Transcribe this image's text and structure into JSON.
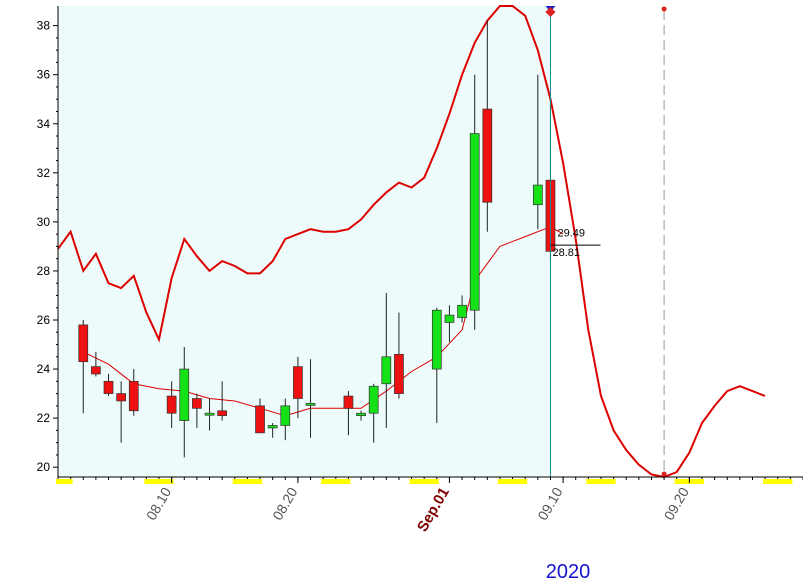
{
  "chart_data": {
    "type": "candlestick",
    "year_label": "2020",
    "y_ticks": [
      "20",
      "22",
      "24",
      "26",
      "28",
      "30",
      "32",
      "34",
      "36",
      "38"
    ],
    "x_ticks": [
      {
        "label": "08.10",
        "date": "2020-08-10"
      },
      {
        "label": "08.20",
        "date": "2020-08-20"
      },
      {
        "label": "Sep.01",
        "date": "2020-09-01",
        "emphasis": true
      },
      {
        "label": "09.10",
        "date": "2020-09-10"
      },
      {
        "label": "09.20",
        "date": "2020-09-20"
      }
    ],
    "ylim": [
      19.6,
      38.8
    ],
    "xlim": [
      "2020-08-01",
      "2020-09-29"
    ],
    "last_close_label": "28.81",
    "moving_avg_label": "29.49",
    "colors": {
      "up": "#16e016",
      "down": "#ee1111",
      "line": "#dd0000",
      "shade": "#eefbfb",
      "cursor": "#0f8f8f",
      "year_label": "#1515cc",
      "sep_label": "#800000",
      "weekend": "#ffff00"
    },
    "candles": [
      {
        "date": "2020-08-03",
        "open": 25.8,
        "high": 26.0,
        "low": 22.2,
        "close": 24.3
      },
      {
        "date": "2020-08-04",
        "open": 24.1,
        "high": 24.7,
        "low": 23.7,
        "close": 23.8
      },
      {
        "date": "2020-08-05",
        "open": 23.5,
        "high": 23.8,
        "low": 22.9,
        "close": 23.0
      },
      {
        "date": "2020-08-06",
        "open": 23.0,
        "high": 23.5,
        "low": 21.0,
        "close": 22.7
      },
      {
        "date": "2020-08-07",
        "open": 23.5,
        "high": 24.0,
        "low": 22.1,
        "close": 22.3
      },
      {
        "date": "2020-08-10",
        "open": 22.9,
        "high": 23.5,
        "low": 21.6,
        "close": 22.2
      },
      {
        "date": "2020-08-11",
        "open": 21.9,
        "high": 24.9,
        "low": 20.4,
        "close": 24.0
      },
      {
        "date": "2020-08-12",
        "open": 22.8,
        "high": 23.0,
        "low": 21.6,
        "close": 22.4
      },
      {
        "date": "2020-08-13",
        "open": 22.2,
        "high": 22.8,
        "low": 21.5,
        "close": 22.2
      },
      {
        "date": "2020-08-14",
        "open": 22.3,
        "high": 23.5,
        "low": 21.9,
        "close": 22.1
      },
      {
        "date": "2020-08-17",
        "open": 22.5,
        "high": 22.8,
        "low": 21.4,
        "close": 21.4
      },
      {
        "date": "2020-08-18",
        "open": 21.6,
        "high": 21.8,
        "low": 21.2,
        "close": 21.7
      },
      {
        "date": "2020-08-19",
        "open": 21.7,
        "high": 22.8,
        "low": 21.1,
        "close": 22.5
      },
      {
        "date": "2020-08-20",
        "open": 24.1,
        "high": 24.5,
        "low": 22.0,
        "close": 22.8
      },
      {
        "date": "2020-08-21",
        "open": 22.6,
        "high": 24.4,
        "low": 21.2,
        "close": 22.6
      },
      {
        "date": "2020-08-24",
        "open": 22.9,
        "high": 23.1,
        "low": 21.3,
        "close": 22.4
      },
      {
        "date": "2020-08-25",
        "open": 22.1,
        "high": 22.3,
        "low": 21.9,
        "close": 22.2
      },
      {
        "date": "2020-08-26",
        "open": 22.2,
        "high": 23.4,
        "low": 21.0,
        "close": 23.3
      },
      {
        "date": "2020-08-27",
        "open": 23.4,
        "high": 27.1,
        "low": 21.6,
        "close": 24.5
      },
      {
        "date": "2020-08-28",
        "open": 24.6,
        "high": 26.3,
        "low": 22.8,
        "close": 23.0
      },
      {
        "date": "2020-08-31",
        "open": 24.0,
        "high": 26.5,
        "low": 21.8,
        "close": 26.4
      },
      {
        "date": "2020-09-01",
        "open": 25.9,
        "high": 26.6,
        "low": 25.1,
        "close": 26.2
      },
      {
        "date": "2020-09-02",
        "open": 26.1,
        "high": 27.0,
        "low": 25.9,
        "close": 26.6
      },
      {
        "date": "2020-09-03",
        "open": 26.4,
        "high": 36.0,
        "low": 25.6,
        "close": 33.6
      },
      {
        "date": "2020-09-04",
        "open": 34.6,
        "high": 38.2,
        "low": 29.6,
        "close": 30.8
      },
      {
        "date": "2020-09-08",
        "open": 30.7,
        "high": 36.0,
        "low": 29.7,
        "close": 31.5
      },
      {
        "date": "2020-09-09",
        "open": 31.7,
        "high": 35.3,
        "low": 28.4,
        "close": 28.8
      }
    ],
    "moving_average": [
      [
        "2020-08-03",
        24.7
      ],
      [
        "2020-08-05",
        24.2
      ],
      [
        "2020-08-07",
        23.4
      ],
      [
        "2020-08-09",
        23.2
      ],
      [
        "2020-08-11",
        23.1
      ],
      [
        "2020-08-13",
        22.8
      ],
      [
        "2020-08-15",
        22.7
      ],
      [
        "2020-08-17",
        22.4
      ],
      [
        "2020-08-19",
        22.1
      ],
      [
        "2020-08-21",
        22.4
      ],
      [
        "2020-08-23",
        22.4
      ],
      [
        "2020-08-25",
        22.4
      ],
      [
        "2020-08-27",
        23.1
      ],
      [
        "2020-08-29",
        23.9
      ],
      [
        "2020-08-31",
        24.5
      ],
      [
        "2020-09-02",
        25.6
      ],
      [
        "2020-09-03",
        27.6
      ],
      [
        "2020-09-05",
        29.0
      ],
      [
        "2020-09-07",
        29.4
      ],
      [
        "2020-09-09",
        29.8
      ],
      [
        "2020-09-10",
        29.5
      ]
    ],
    "upper_band": [
      [
        "2020-08-01",
        28.9
      ],
      [
        "2020-08-02",
        29.6
      ],
      [
        "2020-08-03",
        28.0
      ],
      [
        "2020-08-04",
        28.7
      ],
      [
        "2020-08-05",
        27.5
      ],
      [
        "2020-08-06",
        27.3
      ],
      [
        "2020-08-07",
        27.8
      ],
      [
        "2020-08-08",
        26.3
      ],
      [
        "2020-08-09",
        25.2
      ],
      [
        "2020-08-10",
        27.7
      ],
      [
        "2020-08-11",
        29.3
      ],
      [
        "2020-08-12",
        28.6
      ],
      [
        "2020-08-13",
        28.0
      ],
      [
        "2020-08-14",
        28.4
      ],
      [
        "2020-08-15",
        28.2
      ],
      [
        "2020-08-16",
        27.9
      ],
      [
        "2020-08-17",
        27.9
      ],
      [
        "2020-08-18",
        28.4
      ],
      [
        "2020-08-19",
        29.3
      ],
      [
        "2020-08-20",
        29.5
      ],
      [
        "2020-08-21",
        29.7
      ],
      [
        "2020-08-22",
        29.6
      ],
      [
        "2020-08-23",
        29.6
      ],
      [
        "2020-08-24",
        29.7
      ],
      [
        "2020-08-25",
        30.1
      ],
      [
        "2020-08-26",
        30.7
      ],
      [
        "2020-08-27",
        31.2
      ],
      [
        "2020-08-28",
        31.6
      ],
      [
        "2020-08-29",
        31.4
      ],
      [
        "2020-08-30",
        31.8
      ],
      [
        "2020-08-31",
        33.0
      ],
      [
        "2020-09-01",
        34.4
      ],
      [
        "2020-09-02",
        36.0
      ],
      [
        "2020-09-03",
        37.3
      ],
      [
        "2020-09-04",
        38.2
      ],
      [
        "2020-09-05",
        38.8
      ],
      [
        "2020-09-06",
        38.8
      ],
      [
        "2020-09-07",
        38.4
      ],
      [
        "2020-09-08",
        37.0
      ],
      [
        "2020-09-09",
        35.0
      ],
      [
        "2020-09-10",
        32.4
      ],
      [
        "2020-09-11",
        29.3
      ],
      [
        "2020-09-12",
        25.6
      ],
      [
        "2020-09-13",
        22.9
      ],
      [
        "2020-09-14",
        21.5
      ],
      [
        "2020-09-15",
        20.7
      ],
      [
        "2020-09-16",
        20.1
      ],
      [
        "2020-09-17",
        19.7
      ],
      [
        "2020-09-18",
        19.6
      ],
      [
        "2020-09-19",
        19.8
      ],
      [
        "2020-09-20",
        20.6
      ],
      [
        "2020-09-21",
        21.8
      ],
      [
        "2020-09-22",
        22.5
      ],
      [
        "2020-09-23",
        23.1
      ],
      [
        "2020-09-24",
        23.3
      ],
      [
        "2020-09-25",
        23.1
      ],
      [
        "2020-09-26",
        22.9
      ]
    ],
    "cursor_date": "2020-09-09",
    "projection_date": "2020-09-18",
    "shaded_range": [
      "2020-08-01",
      "2020-09-09"
    ],
    "weekend_markers": [
      "2020-08-01",
      "2020-08-08",
      "2020-08-09",
      "2020-08-15",
      "2020-08-16",
      "2020-08-22",
      "2020-08-23",
      "2020-08-29",
      "2020-08-30",
      "2020-09-05",
      "2020-09-06",
      "2020-09-12",
      "2020-09-13",
      "2020-09-19",
      "2020-09-20",
      "2020-09-26",
      "2020-09-27"
    ]
  }
}
